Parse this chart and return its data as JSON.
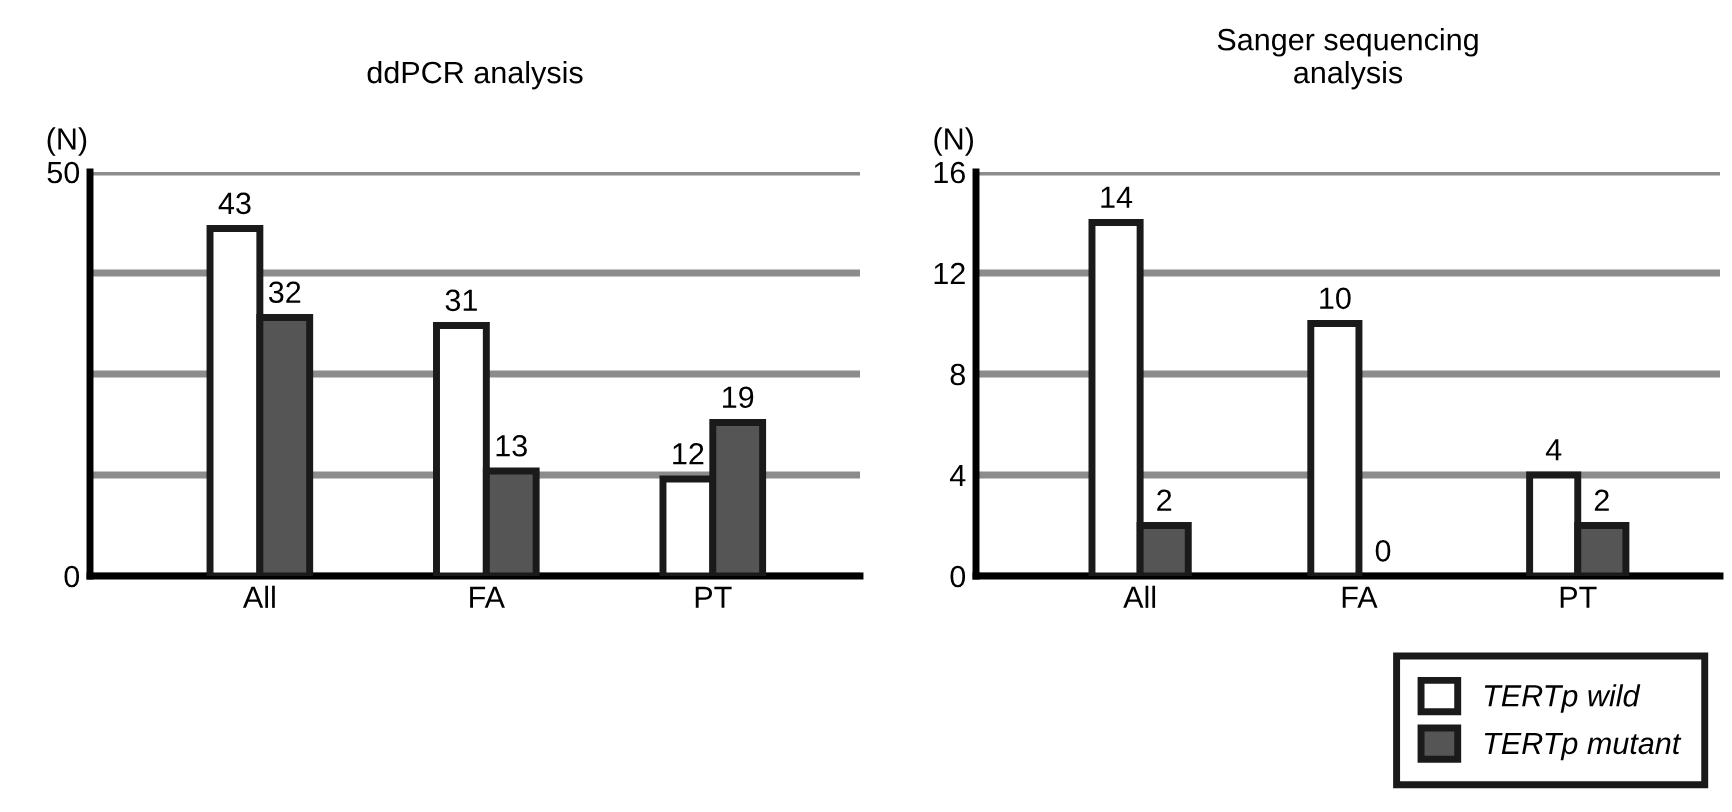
{
  "chart_data": [
    {
      "type": "bar",
      "title": "ddPCR analysis",
      "ylabel": "(N)",
      "categories": [
        "All",
        "FA",
        "PT"
      ],
      "series": [
        {
          "color": "#ffffff",
          "values": [
            43,
            31,
            12
          ]
        },
        {
          "color": "#555555",
          "values": [
            32,
            13,
            19
          ]
        }
      ],
      "ylim": [
        0,
        50
      ],
      "yticks": [
        0,
        {
          "value": 12.5,
          "label": null
        },
        {
          "value": 25,
          "label": null
        },
        {
          "value": 37.5,
          "label": null
        },
        50
      ],
      "grid": "y",
      "data_labels": true,
      "legend": false
    },
    {
      "type": "bar",
      "title": "Sanger sequencing\nanalysis",
      "ylabel": "(N)",
      "categories": [
        "All",
        "FA",
        "PT"
      ],
      "series": [
        {
          "name": "TERTp wild",
          "color": "#ffffff",
          "values": [
            14,
            10,
            4
          ]
        },
        {
          "name": "TERTp mutant",
          "color": "#555555",
          "values": [
            2,
            0,
            2
          ]
        }
      ],
      "ylim": [
        0,
        16
      ],
      "yticks": [
        0,
        4,
        8,
        12,
        16
      ],
      "grid": "y",
      "data_labels": true,
      "legend": "bottom right"
    }
  ]
}
